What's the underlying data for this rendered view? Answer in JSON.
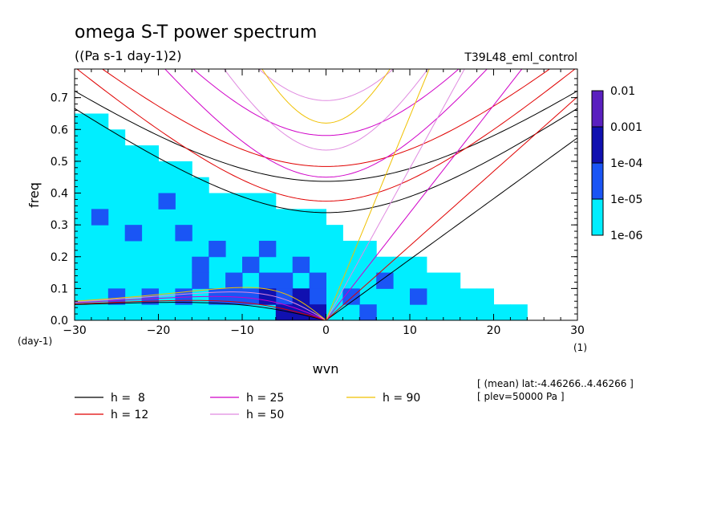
{
  "chart_data": {
    "type": "heatmap",
    "title": "omega S-T power spectrum",
    "subtitle": "((Pa s-1 day-1)2)",
    "run_label": "T39L48_eml_control",
    "xlabel": "wvn",
    "ylabel": "freq",
    "x_unit": "(1)",
    "y_unit": "(day-1)",
    "xlim": [
      -30,
      30
    ],
    "ylim": [
      0,
      0.79
    ],
    "x_ticks": [
      -30,
      -20,
      -10,
      0,
      10,
      20,
      30
    ],
    "y_ticks": [
      0.0,
      0.1,
      0.2,
      0.3,
      0.4,
      0.5,
      0.6,
      0.7
    ],
    "x_tick_labels": [
      "−30",
      "−20",
      "−10",
      "0",
      "10",
      "20",
      "30"
    ],
    "y_tick_labels": [
      "0.0",
      "0.1",
      "0.2",
      "0.3",
      "0.4",
      "0.5",
      "0.6",
      "0.7"
    ],
    "colorbar": {
      "levels": [
        "0.01",
        "0.001",
        "1e-04",
        "1e-05",
        "1e-06"
      ],
      "colors": [
        "#5a1fbf",
        "#1010b0",
        "#1a55f5",
        "#00eeff"
      ]
    },
    "contour_regions": [
      {
        "level": "1e-06",
        "color": "#00eeff",
        "cells": [
          [
            -30,
            0.0
          ],
          [
            -28,
            0.0
          ],
          [
            -26,
            0.0
          ],
          [
            -24,
            0.0
          ],
          [
            -22,
            0.0
          ],
          [
            -20,
            0.0
          ],
          [
            -18,
            0.0
          ],
          [
            -16,
            0.0
          ],
          [
            -14,
            0.0
          ],
          [
            -12,
            0.0
          ],
          [
            -10,
            0.0
          ],
          [
            -8,
            0.0
          ],
          [
            -6,
            0.0
          ],
          [
            -4,
            0.0
          ],
          [
            -2,
            0.0
          ],
          [
            0,
            0.0
          ],
          [
            2,
            0.0
          ],
          [
            4,
            0.0
          ],
          [
            6,
            0.0
          ],
          [
            8,
            0.0
          ],
          [
            10,
            0.0
          ],
          [
            12,
            0.0
          ],
          [
            14,
            0.0
          ],
          [
            16,
            0.0
          ],
          [
            18,
            0.0
          ],
          [
            20,
            0.0
          ],
          [
            22,
            0.0
          ],
          [
            -30,
            0.05
          ],
          [
            -28,
            0.05
          ],
          [
            -26,
            0.05
          ],
          [
            -24,
            0.05
          ],
          [
            -22,
            0.05
          ],
          [
            -20,
            0.05
          ],
          [
            -18,
            0.05
          ],
          [
            -16,
            0.05
          ],
          [
            -14,
            0.05
          ],
          [
            -12,
            0.05
          ],
          [
            -10,
            0.05
          ],
          [
            -8,
            0.05
          ],
          [
            -6,
            0.05
          ],
          [
            -4,
            0.05
          ],
          [
            -2,
            0.05
          ],
          [
            0,
            0.05
          ],
          [
            2,
            0.05
          ],
          [
            4,
            0.05
          ],
          [
            6,
            0.05
          ],
          [
            8,
            0.05
          ],
          [
            10,
            0.05
          ],
          [
            12,
            0.05
          ],
          [
            14,
            0.05
          ],
          [
            16,
            0.05
          ],
          [
            18,
            0.05
          ],
          [
            -30,
            0.1
          ],
          [
            -28,
            0.1
          ],
          [
            -26,
            0.1
          ],
          [
            -24,
            0.1
          ],
          [
            -22,
            0.1
          ],
          [
            -20,
            0.1
          ],
          [
            -18,
            0.1
          ],
          [
            -16,
            0.1
          ],
          [
            -14,
            0.1
          ],
          [
            -12,
            0.1
          ],
          [
            -10,
            0.1
          ],
          [
            -8,
            0.1
          ],
          [
            -6,
            0.1
          ],
          [
            -4,
            0.1
          ],
          [
            -2,
            0.1
          ],
          [
            0,
            0.1
          ],
          [
            2,
            0.1
          ],
          [
            4,
            0.1
          ],
          [
            6,
            0.1
          ],
          [
            8,
            0.1
          ],
          [
            10,
            0.1
          ],
          [
            12,
            0.1
          ],
          [
            14,
            0.1
          ],
          [
            -30,
            0.15
          ],
          [
            -28,
            0.15
          ],
          [
            -26,
            0.15
          ],
          [
            -24,
            0.15
          ],
          [
            -22,
            0.15
          ],
          [
            -20,
            0.15
          ],
          [
            -18,
            0.15
          ],
          [
            -16,
            0.15
          ],
          [
            -14,
            0.15
          ],
          [
            -12,
            0.15
          ],
          [
            -10,
            0.15
          ],
          [
            -8,
            0.15
          ],
          [
            -6,
            0.15
          ],
          [
            -4,
            0.15
          ],
          [
            -2,
            0.15
          ],
          [
            0,
            0.15
          ],
          [
            2,
            0.15
          ],
          [
            4,
            0.15
          ],
          [
            6,
            0.15
          ],
          [
            8,
            0.15
          ],
          [
            10,
            0.15
          ],
          [
            -30,
            0.2
          ],
          [
            -28,
            0.2
          ],
          [
            -26,
            0.2
          ],
          [
            -24,
            0.2
          ],
          [
            -22,
            0.2
          ],
          [
            -20,
            0.2
          ],
          [
            -18,
            0.2
          ],
          [
            -16,
            0.2
          ],
          [
            -14,
            0.2
          ],
          [
            -12,
            0.2
          ],
          [
            -10,
            0.2
          ],
          [
            -8,
            0.2
          ],
          [
            -6,
            0.2
          ],
          [
            -4,
            0.2
          ],
          [
            -2,
            0.2
          ],
          [
            0,
            0.2
          ],
          [
            2,
            0.2
          ],
          [
            4,
            0.2
          ],
          [
            -30,
            0.25
          ],
          [
            -28,
            0.25
          ],
          [
            -26,
            0.25
          ],
          [
            -24,
            0.25
          ],
          [
            -22,
            0.25
          ],
          [
            -20,
            0.25
          ],
          [
            -18,
            0.25
          ],
          [
            -16,
            0.25
          ],
          [
            -14,
            0.25
          ],
          [
            -12,
            0.25
          ],
          [
            -10,
            0.25
          ],
          [
            -8,
            0.25
          ],
          [
            -6,
            0.25
          ],
          [
            -4,
            0.25
          ],
          [
            -2,
            0.25
          ],
          [
            0,
            0.25
          ],
          [
            -30,
            0.3
          ],
          [
            -28,
            0.3
          ],
          [
            -26,
            0.3
          ],
          [
            -24,
            0.3
          ],
          [
            -22,
            0.3
          ],
          [
            -20,
            0.3
          ],
          [
            -18,
            0.3
          ],
          [
            -16,
            0.3
          ],
          [
            -14,
            0.3
          ],
          [
            -12,
            0.3
          ],
          [
            -10,
            0.3
          ],
          [
            -8,
            0.3
          ],
          [
            -6,
            0.3
          ],
          [
            -4,
            0.3
          ],
          [
            -2,
            0.3
          ],
          [
            -30,
            0.35
          ],
          [
            -28,
            0.35
          ],
          [
            -26,
            0.35
          ],
          [
            -24,
            0.35
          ],
          [
            -22,
            0.35
          ],
          [
            -20,
            0.35
          ],
          [
            -18,
            0.35
          ],
          [
            -16,
            0.35
          ],
          [
            -14,
            0.35
          ],
          [
            -12,
            0.35
          ],
          [
            -10,
            0.35
          ],
          [
            -8,
            0.35
          ],
          [
            -30,
            0.4
          ],
          [
            -28,
            0.4
          ],
          [
            -26,
            0.4
          ],
          [
            -24,
            0.4
          ],
          [
            -22,
            0.4
          ],
          [
            -20,
            0.4
          ],
          [
            -18,
            0.4
          ],
          [
            -16,
            0.4
          ],
          [
            -30,
            0.45
          ],
          [
            -28,
            0.45
          ],
          [
            -26,
            0.45
          ],
          [
            -24,
            0.45
          ],
          [
            -22,
            0.45
          ],
          [
            -20,
            0.45
          ],
          [
            -18,
            0.45
          ],
          [
            -30,
            0.5
          ],
          [
            -28,
            0.5
          ],
          [
            -26,
            0.5
          ],
          [
            -24,
            0.5
          ],
          [
            -22,
            0.5
          ],
          [
            -30,
            0.55
          ],
          [
            -28,
            0.55
          ],
          [
            -26,
            0.55
          ],
          [
            -30,
            0.6
          ],
          [
            -28,
            0.6
          ]
        ]
      },
      {
        "level": "1e-05",
        "color": "#1a55f5",
        "cells": [
          [
            -26,
            0.05
          ],
          [
            -22,
            0.05
          ],
          [
            -18,
            0.05
          ],
          [
            -14,
            0.05
          ],
          [
            -10,
            0.05
          ],
          [
            -8,
            0.05
          ],
          [
            -6,
            0.05
          ],
          [
            -4,
            0.05
          ],
          [
            -2,
            0.05
          ],
          [
            2,
            0.05
          ],
          [
            -12,
            0.1
          ],
          [
            -8,
            0.1
          ],
          [
            -6,
            0.1
          ],
          [
            -2,
            0.1
          ],
          [
            6,
            0.1
          ],
          [
            -16,
            0.15
          ],
          [
            -10,
            0.15
          ],
          [
            -4,
            0.15
          ],
          [
            -14,
            0.2
          ],
          [
            -8,
            0.2
          ],
          [
            -24,
            0.25
          ],
          [
            -18,
            0.25
          ],
          [
            -28,
            0.3
          ],
          [
            -20,
            0.35
          ],
          [
            -4,
            0.0
          ],
          [
            -2,
            0.0
          ],
          [
            4,
            0.0
          ],
          [
            10,
            0.05
          ],
          [
            -12,
            0.05
          ],
          [
            -16,
            0.1
          ]
        ]
      },
      {
        "level": "1e-04",
        "color": "#1010b0",
        "cells": [
          [
            -6,
            0.0
          ],
          [
            -4,
            0.0
          ],
          [
            -2,
            0.0
          ],
          [
            -8,
            0.05
          ],
          [
            -4,
            0.05
          ]
        ]
      }
    ],
    "dispersion_curves": [
      {
        "label": "h =  8",
        "color": "#000000",
        "h": 8
      },
      {
        "label": "h = 12",
        "color": "#e00000",
        "h": 12
      },
      {
        "label": "h = 25",
        "color": "#d000c8",
        "h": 25
      },
      {
        "label": "h = 50",
        "color": "#e08ae0",
        "h": 50
      },
      {
        "label": "h = 90",
        "color": "#f0c000",
        "h": 90
      }
    ],
    "annotations": [
      "[ (mean) lat:-4.46266..4.46266 ]",
      "[ plev=50000 Pa ]"
    ]
  }
}
